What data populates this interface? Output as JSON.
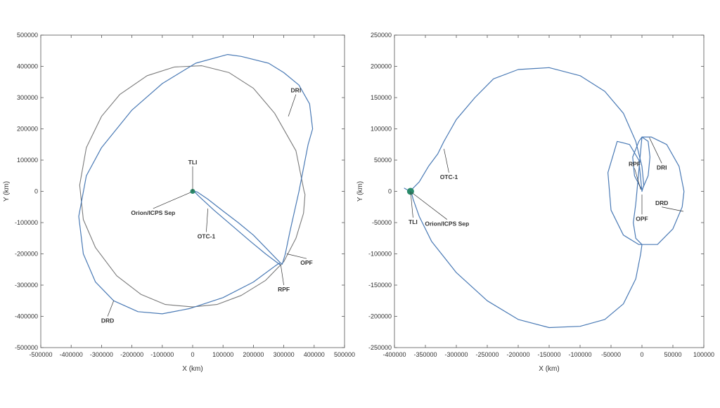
{
  "chart_data": [
    {
      "type": "line",
      "title": "",
      "xlabel": "X (km)",
      "ylabel": "Y (km)",
      "xlim": [
        -500000,
        500000
      ],
      "ylim": [
        -500000,
        500000
      ],
      "xticks": [
        -500000,
        -400000,
        -300000,
        -200000,
        -100000,
        0,
        100000,
        200000,
        300000,
        400000,
        500000
      ],
      "yticks": [
        500000,
        400000,
        300000,
        200000,
        100000,
        0,
        -100000,
        -200000,
        -300000,
        -400000,
        -500000
      ],
      "grid": false,
      "colors": {
        "trajectory": "#4a7ab5",
        "moon_orbit": "#7a7a7a",
        "earth": "#2a8a6a"
      },
      "earth": {
        "x": 0,
        "y": 0
      },
      "series": [
        {
          "kind": "moon_orbit",
          "x": [
            367000,
            340000,
            270000,
            200000,
            120000,
            30000,
            -60000,
            -150000,
            -240000,
            -300000,
            -350000,
            -372000,
            -360000,
            -320000,
            -250000,
            -170000,
            -90000,
            0,
            80000,
            160000,
            240000,
            300000,
            340000,
            365000,
            370000,
            367000
          ],
          "y": [
            0,
            130000,
            250000,
            330000,
            380000,
            402000,
            398000,
            370000,
            310000,
            240000,
            140000,
            20000,
            -90000,
            -180000,
            -270000,
            -330000,
            -362000,
            -370000,
            -362000,
            -333000,
            -285000,
            -225000,
            -150000,
            -70000,
            -10000,
            0
          ]
        },
        {
          "kind": "outbound",
          "x": [
            -3000,
            15000,
            50000,
            100000,
            150000,
            200000,
            240000,
            275000,
            290000,
            295000,
            305000
          ],
          "y": [
            3000,
            -2000,
            -25000,
            -63000,
            -100000,
            -140000,
            -180000,
            -215000,
            -230000,
            -233000,
            -200000
          ]
        },
        {
          "kind": "orbit_and_return",
          "x": [
            305000,
            320000,
            350000,
            380000,
            395000,
            385000,
            350000,
            300000,
            250000,
            160000,
            115000,
            10000,
            -100000,
            -200000,
            -300000,
            -350000,
            -375000,
            -360000,
            -320000,
            -260000,
            -180000,
            -100000,
            -10000,
            100000,
            200000,
            270000,
            285000,
            288000,
            240000,
            190000,
            130000,
            70000,
            20000,
            0,
            -6000,
            -3000
          ],
          "y": [
            -200000,
            -130000,
            0,
            150000,
            200000,
            280000,
            340000,
            380000,
            410000,
            432000,
            438000,
            410000,
            345000,
            260000,
            140000,
            50000,
            -80000,
            -200000,
            -290000,
            -350000,
            -385000,
            -392000,
            -375000,
            -340000,
            -290000,
            -240000,
            -230000,
            -235000,
            -200000,
            -160000,
            -110000,
            -60000,
            -15000,
            5000,
            0,
            -5000
          ]
        }
      ],
      "annotations": [
        {
          "label": "TLI",
          "x": 0,
          "y": 0,
          "tx": 0,
          "ty": 80000
        },
        {
          "label": "Orion/ICPS Sep",
          "x": -6000,
          "y": -3000,
          "tx": -130000,
          "ty": -55000
        },
        {
          "label": "OTC-1",
          "x": 50000,
          "y": -55000,
          "tx": 45000,
          "ty": -130000
        },
        {
          "label": "DRI",
          "x": 315000,
          "y": 240000,
          "tx": 340000,
          "ty": 310000
        },
        {
          "label": "OPF",
          "x": 310000,
          "y": -200000,
          "tx": 375000,
          "ty": -215000
        },
        {
          "label": "RPF",
          "x": 290000,
          "y": -235000,
          "tx": 300000,
          "ty": -300000
        },
        {
          "label": "DRD",
          "x": -260000,
          "y": -350000,
          "tx": -280000,
          "ty": -400000
        }
      ]
    },
    {
      "type": "line",
      "title": "",
      "xlabel": "X (km)",
      "ylabel": "Y (km)",
      "xlim": [
        -400000,
        100000
      ],
      "ylim": [
        -250000,
        250000
      ],
      "xticks": [
        -400000,
        -350000,
        -300000,
        -250000,
        -200000,
        -150000,
        -100000,
        -50000,
        0,
        50000,
        100000
      ],
      "yticks": [
        250000,
        200000,
        150000,
        100000,
        50000,
        0,
        -50000,
        -100000,
        -150000,
        -200000,
        -250000
      ],
      "grid": false,
      "colors": {
        "trajectory": "#4a7ab5",
        "earth": "#2a8a6a"
      },
      "earth": {
        "x": -374000,
        "y": 0
      },
      "series": [
        {
          "kind": "outbound",
          "x": [
            -384000,
            -375000,
            -360000,
            -345000,
            -330000,
            -320000,
            -300000,
            -270000,
            -240000,
            -200000,
            -150000,
            -100000,
            -60000,
            -30000,
            -10000,
            0,
            3000,
            0
          ],
          "y": [
            5000,
            0,
            15000,
            40000,
            60000,
            80000,
            115000,
            150000,
            180000,
            195000,
            198000,
            185000,
            160000,
            125000,
            80000,
            40000,
            10000,
            0
          ]
        },
        {
          "kind": "lunar_loops",
          "x": [
            0,
            -5000,
            -20000,
            -40000,
            -55000,
            -50000,
            -30000,
            -5000,
            25000,
            50000,
            65000,
            68000,
            60000,
            40000,
            15000,
            0,
            -5000,
            -15000,
            -12000,
            0,
            10000,
            13000,
            10000,
            0,
            -10000,
            -14000,
            -10000,
            0
          ],
          "y": [
            0,
            50000,
            75000,
            80000,
            30000,
            -30000,
            -70000,
            -85000,
            -85000,
            -60000,
            -25000,
            0,
            40000,
            75000,
            87000,
            87000,
            80000,
            55000,
            25000,
            2000,
            25000,
            55000,
            80000,
            87000,
            -20000,
            -50000,
            -75000,
            -85000
          ]
        },
        {
          "kind": "return",
          "x": [
            0,
            -2000,
            -10000,
            -30000,
            -60000,
            -100000,
            -150000,
            -200000,
            -250000,
            -300000,
            -340000,
            -360000,
            -370000,
            -373000
          ],
          "y": [
            -85000,
            -100000,
            -140000,
            -180000,
            -205000,
            -216000,
            -218000,
            -205000,
            -175000,
            -130000,
            -80000,
            -40000,
            -12000,
            0
          ]
        }
      ],
      "annotations": [
        {
          "label": "TLI",
          "x": -374000,
          "y": 0,
          "tx": -370000,
          "ty": -42000
        },
        {
          "label": "Orion/ICPS Sep",
          "x": -372000,
          "y": -2000,
          "tx": -315000,
          "ty": -45000
        },
        {
          "label": "OTC-1",
          "x": -320000,
          "y": 68000,
          "tx": -312000,
          "ty": 30000
        },
        {
          "label": "RPF",
          "x": -2000,
          "y": 3000,
          "tx": -12000,
          "ty": 37000
        },
        {
          "label": "DRI",
          "x": 12000,
          "y": 86000,
          "tx": 32000,
          "ty": 45000
        },
        {
          "label": "DRD",
          "x": 67000,
          "y": -32000,
          "tx": 32000,
          "ty": -25000
        },
        {
          "label": "OPF",
          "x": 0,
          "y": -5000,
          "tx": 0,
          "ty": -37000
        }
      ]
    }
  ]
}
